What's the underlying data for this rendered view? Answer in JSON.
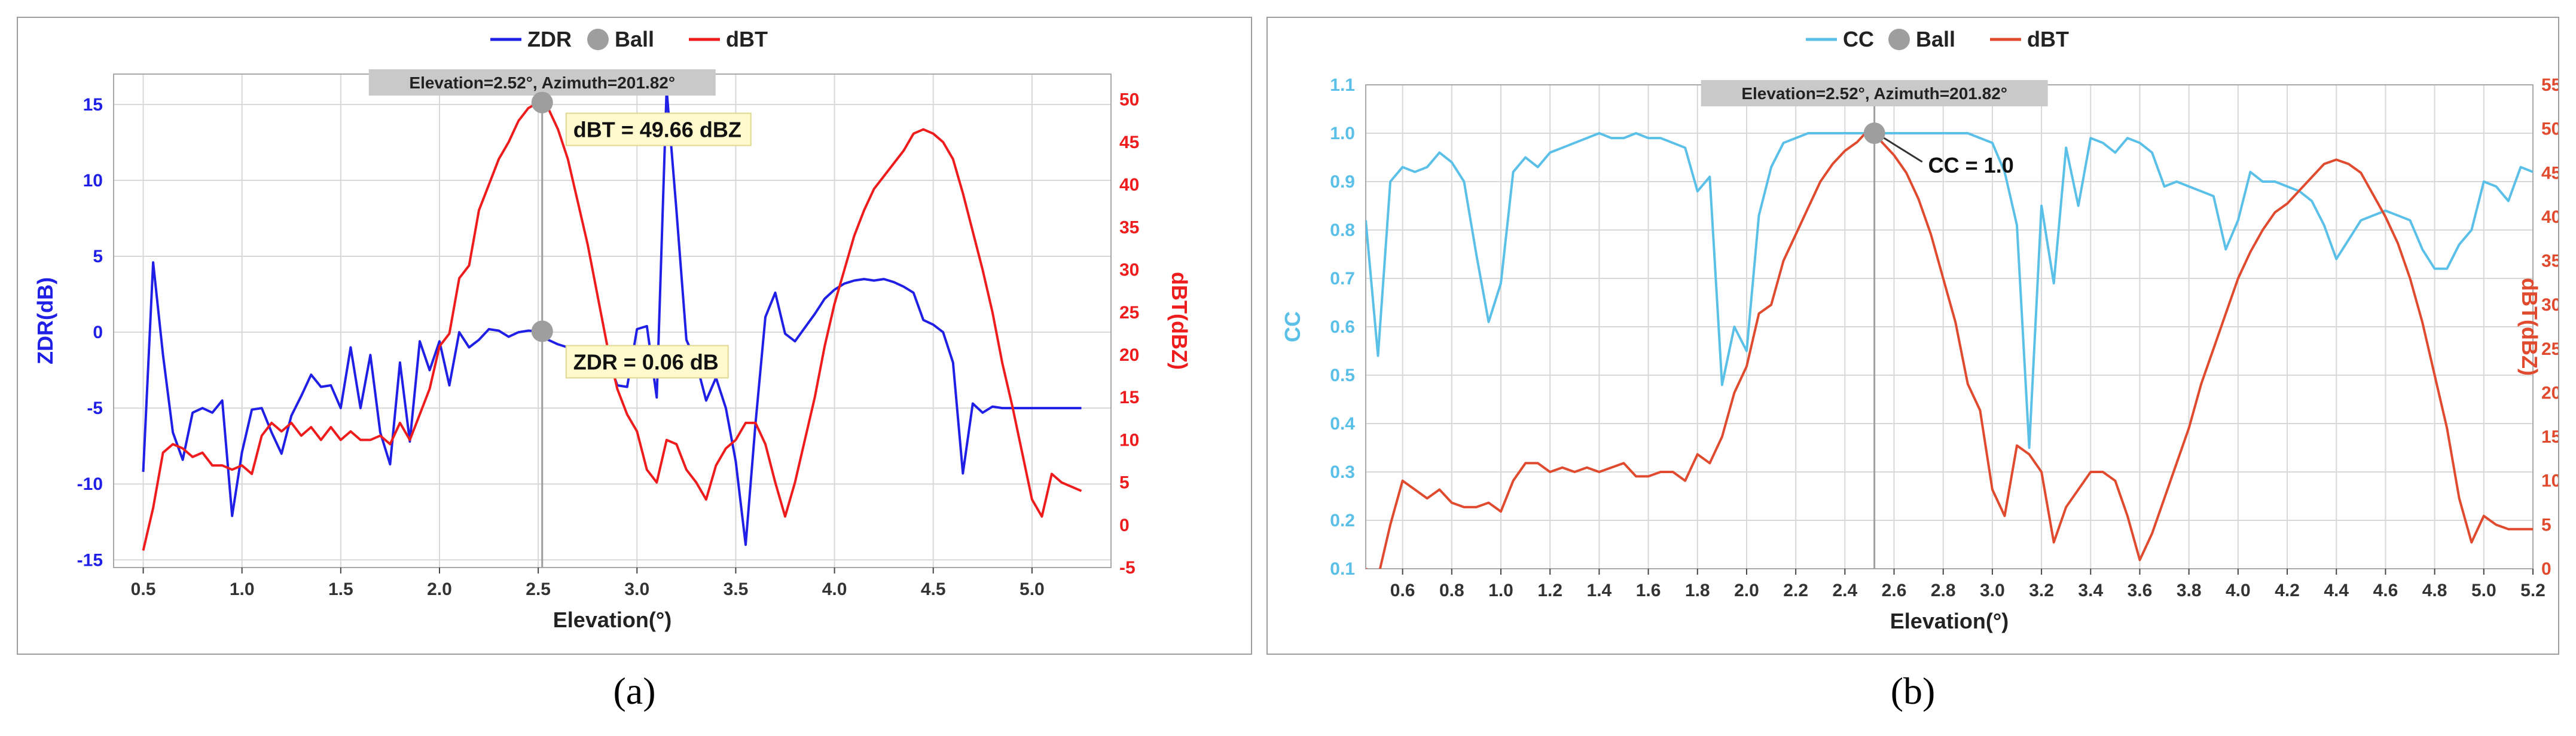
{
  "captions": {
    "a": "(a)",
    "b": "(b)"
  },
  "chart_data": [
    {
      "type": "line",
      "panel": "a",
      "legend": [
        {
          "label": "ZDR",
          "kind": "line",
          "color": "#1f1fe6"
        },
        {
          "label": "Ball",
          "kind": "dot",
          "color": "#9e9e9e"
        },
        {
          "label": "dBT",
          "kind": "line",
          "color": "#ee1c1c"
        }
      ],
      "legend_position": "top-center",
      "xlabel": "Elevation(°)",
      "ylabel_left": "ZDR(dB)",
      "ylabel_right": "dBT(dBZ)",
      "xlim": [
        0.35,
        5.4
      ],
      "ylim_left": [
        -15.5,
        17
      ],
      "ylim_right": [
        -5,
        53
      ],
      "x_ticks": [
        "0.5",
        "1.0",
        "1.5",
        "2.0",
        "2.5",
        "3.0",
        "3.5",
        "4.0",
        "4.5",
        "5.0"
      ],
      "y_left_ticks": [
        "-15",
        "-10",
        "-5",
        "0",
        "5",
        "10",
        "15"
      ],
      "y_right_ticks": [
        "-5",
        "0",
        "5",
        "10",
        "15",
        "20",
        "25",
        "30",
        "35",
        "40",
        "45",
        "50"
      ],
      "grid": true,
      "colors": {
        "left_axis": "#1f1fe6",
        "right_axis": "#ee1c1c",
        "grid": "#d8d8d8",
        "cursor": "#9e9e9e",
        "label_bg": "#fffacd"
      },
      "cursor": {
        "x": 2.52,
        "label": "Elevation=2.52°, Azimuth=201.82°"
      },
      "markers": [
        {
          "series": "dBT",
          "x": 2.52,
          "y": 49.66,
          "label": "dBT = 49.66 dBZ"
        },
        {
          "series": "ZDR",
          "x": 2.52,
          "y": 0.06,
          "label": "ZDR = 0.06 dB"
        }
      ],
      "series": [
        {
          "name": "ZDR",
          "axis": "left",
          "color": "#1f1fe6",
          "x": [
            0.5,
            0.55,
            0.6,
            0.65,
            0.7,
            0.75,
            0.8,
            0.85,
            0.9,
            0.95,
            1.0,
            1.05,
            1.1,
            1.15,
            1.2,
            1.25,
            1.3,
            1.35,
            1.4,
            1.45,
            1.5,
            1.55,
            1.6,
            1.65,
            1.7,
            1.75,
            1.8,
            1.85,
            1.9,
            1.95,
            2.0,
            2.05,
            2.1,
            2.15,
            2.2,
            2.25,
            2.3,
            2.35,
            2.4,
            2.45,
            2.5,
            2.55,
            2.6,
            2.65,
            2.7,
            2.75,
            2.8,
            2.85,
            2.9,
            2.95,
            3.0,
            3.05,
            3.1,
            3.15,
            3.2,
            3.25,
            3.3,
            3.35,
            3.4,
            3.45,
            3.5,
            3.55,
            3.6,
            3.65,
            3.7,
            3.75,
            3.8,
            3.85,
            3.9,
            3.95,
            4.0,
            4.05,
            4.1,
            4.15,
            4.2,
            4.25,
            4.3,
            4.35,
            4.4,
            4.45,
            4.5,
            4.55,
            4.6,
            4.65,
            4.7,
            4.75,
            4.8,
            4.85,
            4.9,
            4.95,
            5.0,
            5.05,
            5.1,
            5.15,
            5.2,
            5.25
          ],
          "values": [
            -9.2,
            4.6,
            -1.5,
            -6.6,
            -8.4,
            -5.3,
            -5.0,
            -5.3,
            -4.5,
            -12.1,
            -7.9,
            -5.1,
            -5.0,
            -6.6,
            -8.0,
            -5.5,
            -4.2,
            -2.8,
            -3.6,
            -3.5,
            -5.0,
            -1.0,
            -5.0,
            -1.5,
            -6.6,
            -8.7,
            -2.0,
            -7.2,
            -0.6,
            -2.5,
            -0.6,
            -3.5,
            0.0,
            -1.0,
            -0.5,
            0.2,
            0.1,
            -0.3,
            0.0,
            0.1,
            0.06,
            -0.5,
            -0.8,
            -1.0,
            -1.2,
            -1.3,
            -1.5,
            -1.6,
            -3.5,
            -3.6,
            0.2,
            0.4,
            -4.3,
            16.0,
            8.0,
            -0.5,
            -2.0,
            -4.5,
            -3.0,
            -5.0,
            -8.5,
            -14.0,
            -6.0,
            1.0,
            2.6,
            -0.1,
            -0.6,
            0.3,
            1.2,
            2.2,
            2.8,
            3.2,
            3.4,
            3.5,
            3.4,
            3.5,
            3.3,
            3.0,
            2.6,
            0.8,
            0.5,
            0.0,
            -2.0,
            -9.3,
            -4.7,
            -5.3,
            -4.9,
            -5.0,
            -5.0,
            -5.0,
            -5.0,
            -5.0,
            -5.0,
            -5.0,
            -5.0,
            -5.0
          ],
          "note": "truncate"
        },
        {
          "name": "dBT",
          "axis": "right",
          "color": "#ee1c1c",
          "x": [
            0.5,
            0.55,
            0.6,
            0.65,
            0.7,
            0.75,
            0.8,
            0.85,
            0.9,
            0.95,
            1.0,
            1.05,
            1.1,
            1.15,
            1.2,
            1.25,
            1.3,
            1.35,
            1.4,
            1.45,
            1.5,
            1.55,
            1.6,
            1.65,
            1.7,
            1.75,
            1.8,
            1.85,
            1.9,
            1.95,
            2.0,
            2.05,
            2.1,
            2.15,
            2.2,
            2.25,
            2.3,
            2.35,
            2.4,
            2.45,
            2.5,
            2.55,
            2.6,
            2.65,
            2.7,
            2.75,
            2.8,
            2.85,
            2.9,
            2.95,
            3.0,
            3.05,
            3.1,
            3.15,
            3.2,
            3.25,
            3.3,
            3.35,
            3.4,
            3.45,
            3.5,
            3.55,
            3.6,
            3.65,
            3.7,
            3.75,
            3.8,
            3.85,
            3.9,
            3.95,
            4.0,
            4.05,
            4.1,
            4.15,
            4.2,
            4.25,
            4.3,
            4.35,
            4.4,
            4.45,
            4.5,
            4.55,
            4.6,
            4.65,
            4.7,
            4.75,
            4.8,
            4.85,
            4.9,
            4.95,
            5.0,
            5.05,
            5.1,
            5.15,
            5.2,
            5.25
          ],
          "values": [
            -3.0,
            2.0,
            8.5,
            9.5,
            9.0,
            8.0,
            8.5,
            7.0,
            7.0,
            6.5,
            7.0,
            6.0,
            10.5,
            12.0,
            11.0,
            12.0,
            10.5,
            11.5,
            10.0,
            11.5,
            10.0,
            11.0,
            10.0,
            10.0,
            10.5,
            9.5,
            12.0,
            10.0,
            13.0,
            16.0,
            21.0,
            22.5,
            29.0,
            30.5,
            37.0,
            40.0,
            43.0,
            45.0,
            47.5,
            49.0,
            49.66,
            49.0,
            46.5,
            43.0,
            38.0,
            33.0,
            27.0,
            21.0,
            16.0,
            13.0,
            11.0,
            6.5,
            5.0,
            10.0,
            9.5,
            6.5,
            5.0,
            3.0,
            7.0,
            9.0,
            10.0,
            12.0,
            12.0,
            9.5,
            5.0,
            1.0,
            5.0,
            10.0,
            15.0,
            21.0,
            26.0,
            30.0,
            34.0,
            37.0,
            39.5,
            41.0,
            42.5,
            44.0,
            46.0,
            46.5,
            46.0,
            45.0,
            43.0,
            39.0,
            34.5,
            30.0,
            25.0,
            19.0,
            14.0,
            8.5,
            3.0,
            1.0,
            6.0,
            5.0,
            4.5,
            4.0
          ]
        }
      ]
    },
    {
      "type": "line",
      "panel": "b",
      "legend": [
        {
          "label": "CC",
          "kind": "line",
          "color": "#5bc0e8"
        },
        {
          "label": "Ball",
          "kind": "dot",
          "color": "#9e9e9e"
        },
        {
          "label": "dBT",
          "kind": "line",
          "color": "#e04a2e"
        }
      ],
      "legend_position": "top-center",
      "xlabel": "Elevation(°)",
      "ylabel_left": "CC",
      "ylabel_right": "dBT(dBZ)",
      "xlim": [
        0.45,
        5.2
      ],
      "ylim_left": [
        0.1,
        1.1
      ],
      "ylim_right": [
        0,
        55
      ],
      "x_ticks": [
        "0.6",
        "0.8",
        "1.0",
        "1.2",
        "1.4",
        "1.6",
        "1.8",
        "2.0",
        "2.2",
        "2.4",
        "2.6",
        "2.8",
        "3.0",
        "3.2",
        "3.4",
        "3.6",
        "3.8",
        "4.0",
        "4.2",
        "4.4",
        "4.6",
        "4.8",
        "5.0",
        "5.2"
      ],
      "y_left_ticks": [
        "0.1",
        "0.2",
        "0.3",
        "0.4",
        "0.5",
        "0.6",
        "0.7",
        "0.8",
        "0.9",
        "1.0",
        "1.1"
      ],
      "y_right_ticks": [
        "0",
        "5",
        "10",
        "15",
        "20",
        "25",
        "30",
        "35",
        "40",
        "45",
        "50",
        "55"
      ],
      "grid": true,
      "colors": {
        "left_axis": "#5bc0e8",
        "right_axis": "#e04a2e",
        "grid": "#d8d8d8",
        "cursor": "#9e9e9e",
        "label_bg": "#ffffff"
      },
      "cursor": {
        "x": 2.52,
        "label": "Elevation=2.52°, Azimuth=201.82°"
      },
      "markers": [
        {
          "series": "CC",
          "x": 2.52,
          "y": 1.0,
          "label": "CC = 1.0"
        }
      ],
      "series": [
        {
          "name": "CC",
          "axis": "left",
          "color": "#5bc0e8",
          "x": [
            0.45,
            0.5,
            0.55,
            0.6,
            0.65,
            0.7,
            0.75,
            0.8,
            0.85,
            0.9,
            0.95,
            1.0,
            1.05,
            1.1,
            1.15,
            1.2,
            1.25,
            1.3,
            1.35,
            1.4,
            1.45,
            1.5,
            1.55,
            1.6,
            1.65,
            1.7,
            1.75,
            1.8,
            1.85,
            1.9,
            1.95,
            2.0,
            2.05,
            2.1,
            2.15,
            2.2,
            2.25,
            2.3,
            2.35,
            2.4,
            2.45,
            2.5,
            2.55,
            2.6,
            2.65,
            2.7,
            2.75,
            2.8,
            2.85,
            2.9,
            2.95,
            3.0,
            3.05,
            3.1,
            3.15,
            3.2,
            3.25,
            3.3,
            3.35,
            3.4,
            3.45,
            3.5,
            3.55,
            3.6,
            3.65,
            3.7,
            3.75,
            3.8,
            3.85,
            3.9,
            3.95,
            4.0,
            4.05,
            4.1,
            4.15,
            4.2,
            4.25,
            4.3,
            4.35,
            4.4,
            4.45,
            4.5,
            4.55,
            4.6,
            4.65,
            4.7,
            4.75,
            4.8,
            4.85,
            4.9,
            4.95,
            5.0,
            5.05,
            5.1,
            5.15,
            5.2
          ],
          "values": [
            0.82,
            0.54,
            0.9,
            0.93,
            0.92,
            0.93,
            0.96,
            0.94,
            0.9,
            0.75,
            0.61,
            0.69,
            0.92,
            0.95,
            0.93,
            0.96,
            0.97,
            0.98,
            0.99,
            1.0,
            0.99,
            0.99,
            1.0,
            0.99,
            0.99,
            0.98,
            0.97,
            0.88,
            0.91,
            0.48,
            0.6,
            0.55,
            0.83,
            0.93,
            0.98,
            0.99,
            1.0,
            1.0,
            1.0,
            1.0,
            1.0,
            1.0,
            1.0,
            1.0,
            1.0,
            1.0,
            1.0,
            1.0,
            1.0,
            1.0,
            0.99,
            0.98,
            0.92,
            0.81,
            0.35,
            0.85,
            0.69,
            0.97,
            0.85,
            0.99,
            0.98,
            0.96,
            0.99,
            0.98,
            0.96,
            0.89,
            0.9,
            0.89,
            0.88,
            0.87,
            0.76,
            0.82,
            0.92,
            0.9,
            0.9,
            0.89,
            0.88,
            0.86,
            0.81,
            0.74,
            0.78,
            0.82,
            0.83,
            0.84,
            0.83,
            0.82,
            0.76,
            0.72,
            0.72,
            0.77,
            0.8,
            0.9,
            0.89,
            0.86,
            0.93,
            0.92
          ],
          "note": "truncate"
        },
        {
          "name": "dBT",
          "axis": "right",
          "color": "#e04a2e",
          "x": [
            0.45,
            0.5,
            0.55,
            0.6,
            0.65,
            0.7,
            0.75,
            0.8,
            0.85,
            0.9,
            0.95,
            1.0,
            1.05,
            1.1,
            1.15,
            1.2,
            1.25,
            1.3,
            1.35,
            1.4,
            1.45,
            1.5,
            1.55,
            1.6,
            1.65,
            1.7,
            1.75,
            1.8,
            1.85,
            1.9,
            1.95,
            2.0,
            2.05,
            2.1,
            2.15,
            2.2,
            2.25,
            2.3,
            2.35,
            2.4,
            2.45,
            2.5,
            2.55,
            2.6,
            2.65,
            2.7,
            2.75,
            2.8,
            2.85,
            2.9,
            2.95,
            3.0,
            3.05,
            3.1,
            3.15,
            3.2,
            3.25,
            3.3,
            3.35,
            3.4,
            3.45,
            3.5,
            3.55,
            3.6,
            3.65,
            3.7,
            3.75,
            3.8,
            3.85,
            3.9,
            3.95,
            4.0,
            4.05,
            4.1,
            4.15,
            4.2,
            4.25,
            4.3,
            4.35,
            4.4,
            4.45,
            4.5,
            4.55,
            4.6,
            4.65,
            4.7,
            4.75,
            4.8,
            4.85,
            4.9,
            4.95,
            5.0,
            5.05,
            5.1,
            5.15,
            5.2
          ],
          "values": [
            0,
            -1,
            5,
            10,
            9,
            8,
            9,
            7.5,
            7,
            7,
            7.5,
            6.5,
            10,
            12,
            12,
            11,
            11.5,
            11,
            11.5,
            11,
            11.5,
            12,
            10.5,
            10.5,
            11,
            11,
            10,
            13,
            12,
            15,
            20,
            23,
            29,
            30,
            35,
            38,
            41,
            44,
            46,
            47.5,
            48.5,
            50,
            48.5,
            47,
            45,
            42,
            38,
            33,
            28,
            21,
            18,
            9,
            6,
            14,
            13,
            11,
            3,
            7,
            9,
            11,
            11,
            10,
            6,
            1,
            4,
            8,
            12,
            16,
            21,
            25,
            29,
            33,
            36,
            38.5,
            40.5,
            41.5,
            43,
            44.5,
            46,
            46.5,
            46,
            45,
            42.5,
            40,
            37,
            33,
            28,
            22,
            16,
            8,
            3,
            6,
            5,
            4.5,
            4.5,
            4.5
          ]
        }
      ]
    }
  ]
}
